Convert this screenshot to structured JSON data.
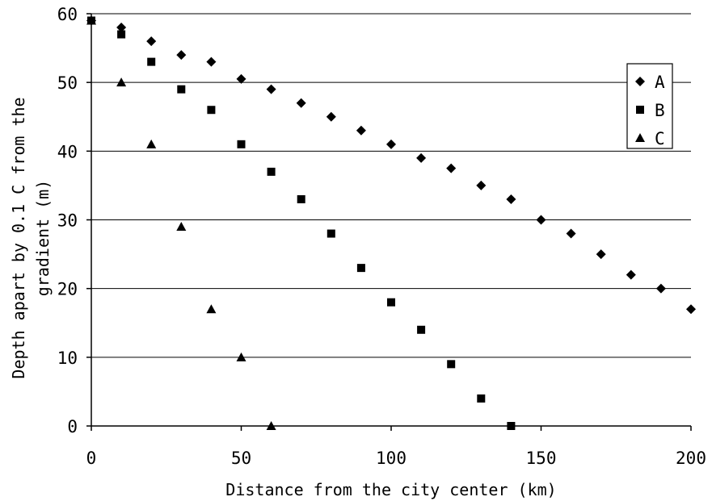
{
  "chart_data": {
    "type": "scatter",
    "title": "",
    "xlabel": "Distance from the city center (km)",
    "ylabel_lines": [
      "Depth apart by 0.1 C from the",
      "gradient (m)"
    ],
    "xlim": [
      0,
      200
    ],
    "ylim": [
      0,
      60
    ],
    "xticks": [
      0,
      50,
      100,
      150,
      200
    ],
    "yticks": [
      0,
      10,
      20,
      30,
      40,
      50,
      60
    ],
    "xtick_labels": [
      "0",
      "50",
      "100",
      "150",
      "200"
    ],
    "ytick_labels": [
      "0",
      "10",
      "20",
      "30",
      "40",
      "50",
      "60"
    ],
    "grid": "horizontal",
    "legend_position": "right",
    "series": [
      {
        "name": "A",
        "marker": "diamond",
        "x": [
          0,
          10,
          20,
          30,
          40,
          50,
          60,
          70,
          80,
          90,
          100,
          110,
          120,
          130,
          140,
          150,
          160,
          170,
          180,
          190,
          200
        ],
        "y": [
          59,
          58,
          56,
          54,
          53,
          50.5,
          49,
          47,
          45,
          43,
          41,
          39,
          37.5,
          35,
          33,
          30,
          28,
          25,
          22,
          20,
          17
        ]
      },
      {
        "name": "B",
        "marker": "square",
        "x": [
          0,
          10,
          20,
          30,
          40,
          50,
          60,
          70,
          80,
          90,
          100,
          110,
          120,
          130,
          140
        ],
        "y": [
          59,
          57,
          53,
          49,
          46,
          41,
          37,
          33,
          28,
          23,
          18,
          14,
          9,
          4,
          0
        ]
      },
      {
        "name": "C",
        "marker": "triangle",
        "x": [
          0,
          10,
          20,
          30,
          40,
          50,
          60
        ],
        "y": [
          59,
          50,
          41,
          29,
          17,
          10,
          0
        ]
      }
    ]
  }
}
